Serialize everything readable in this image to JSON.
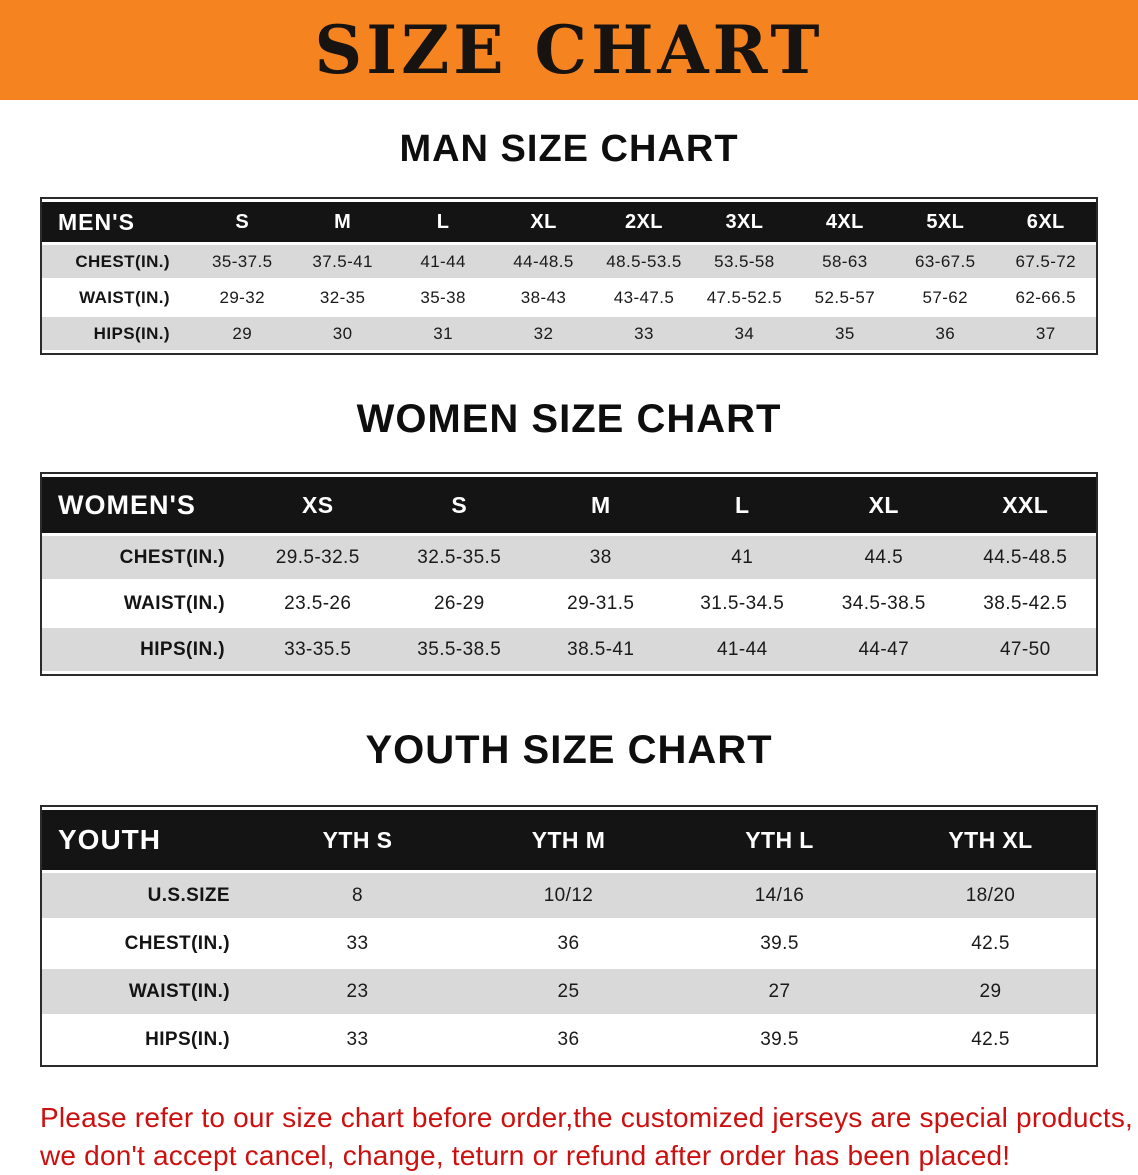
{
  "banner": {
    "title": "SIZE CHART"
  },
  "colors": {
    "banner_bg": "#f5831f",
    "banner_text": "#161310",
    "header_row_bg": "#141414",
    "header_row_text": "#ffffff",
    "stripe_row_bg": "#d9d9d9",
    "table_border": "#2b2b2b",
    "disclaimer_text": "#cc1010"
  },
  "sections": [
    {
      "id": "men",
      "heading": "MAN SIZE CHART",
      "table": {
        "header": [
          "MEN'S",
          "S",
          "M",
          "L",
          "XL",
          "2XL",
          "3XL",
          "4XL",
          "5XL",
          "6XL"
        ],
        "rows": [
          [
            "CHEST(IN.)",
            "35-37.5",
            "37.5-41",
            "41-44",
            "44-48.5",
            "48.5-53.5",
            "53.5-58",
            "58-63",
            "63-67.5",
            "67.5-72"
          ],
          [
            "WAIST(IN.)",
            "29-32",
            "32-35",
            "35-38",
            "38-43",
            "43-47.5",
            "47.5-52.5",
            "52.5-57",
            "57-62",
            "62-66.5"
          ],
          [
            "HIPS(IN.)",
            "29",
            "30",
            "31",
            "32",
            "33",
            "34",
            "35",
            "36",
            "37"
          ]
        ]
      }
    },
    {
      "id": "women",
      "heading": "WOMEN SIZE CHART",
      "table": {
        "header": [
          "WOMEN'S",
          "XS",
          "S",
          "M",
          "L",
          "XL",
          "XXL"
        ],
        "rows": [
          [
            "CHEST(IN.)",
            "29.5-32.5",
            "32.5-35.5",
            "38",
            "41",
            "44.5",
            "44.5-48.5"
          ],
          [
            "WAIST(IN.)",
            "23.5-26",
            "26-29",
            "29-31.5",
            "31.5-34.5",
            "34.5-38.5",
            "38.5-42.5"
          ],
          [
            "HIPS(IN.)",
            "33-35.5",
            "35.5-38.5",
            "38.5-41",
            "41-44",
            "44-47",
            "47-50"
          ]
        ]
      }
    },
    {
      "id": "youth",
      "heading": "YOUTH SIZE CHART",
      "table": {
        "header": [
          "YOUTH",
          "YTH S",
          "YTH M",
          "YTH L",
          "YTH XL"
        ],
        "rows": [
          [
            "U.S.SIZE",
            "8",
            "10/12",
            "14/16",
            "18/20"
          ],
          [
            "CHEST(IN.)",
            "33",
            "36",
            "39.5",
            "42.5"
          ],
          [
            "WAIST(IN.)",
            "23",
            "25",
            "27",
            "29"
          ],
          [
            "HIPS(IN.)",
            "33",
            "36",
            "39.5",
            "42.5"
          ]
        ]
      }
    }
  ],
  "disclaimer": {
    "line1": "Please refer to our size chart before order,the customized jerseys are special products,",
    "line2": "we don't accept cancel, change, teturn or refund after order has been placed!"
  }
}
